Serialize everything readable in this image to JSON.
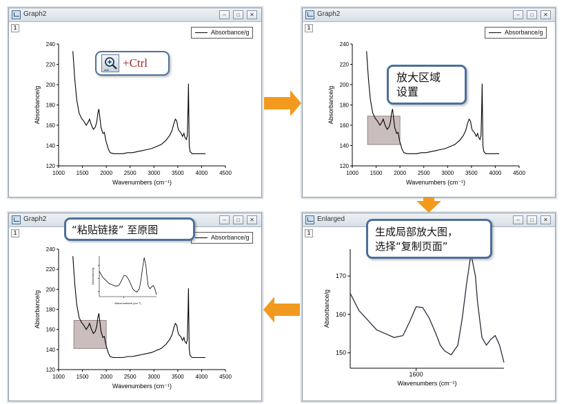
{
  "windows": [
    {
      "title": "Graph2",
      "layer_label": "1",
      "legend": "Absorbance/g"
    },
    {
      "title": "Graph2",
      "layer_label": "1",
      "legend": "Absorbance/g"
    },
    {
      "title": "Enlarged",
      "layer_label": "1"
    },
    {
      "title": "Graph2",
      "layer_label": "1",
      "legend": "Absorbance/g"
    }
  ],
  "window_controls": {
    "minimize": "–",
    "maximize": "□",
    "close": "✕"
  },
  "callouts": {
    "zoom_ctrl": "+Ctrl",
    "zoom_region": [
      "放大区域",
      "设置"
    ],
    "copy_page": [
      "生成局部放大图，",
      "选择“复制页面”"
    ],
    "paste_link": "“粘贴链接” 至原图"
  },
  "colors": {
    "accent_arrow": "#f29a1e",
    "callout_border": "#4c6f9c",
    "zoom_region_fill": "#b8a7a7"
  },
  "chart_data": [
    {
      "type": "line",
      "xlabel": "Wavenumbers (cm⁻¹)",
      "ylabel": "Absorbance/g",
      "xlim": [
        1000,
        4500
      ],
      "ylim": [
        120,
        240
      ],
      "xticks": [
        1000,
        1500,
        2000,
        2500,
        3000,
        3500,
        4000,
        4500
      ],
      "yticks": [
        120,
        140,
        160,
        180,
        200,
        220,
        240
      ],
      "legend": "Absorbance/g",
      "series": [
        {
          "name": "Absorbance/g",
          "x": [
            1300,
            1340,
            1380,
            1430,
            1480,
            1530,
            1580,
            1620,
            1650,
            1690,
            1730,
            1770,
            1800,
            1825,
            1845,
            1865,
            1890,
            1930,
            1960,
            1990,
            2040,
            2080,
            2150,
            2250,
            2350,
            2450,
            2550,
            2650,
            2750,
            2850,
            2950,
            3050,
            3150,
            3250,
            3330,
            3380,
            3420,
            3450,
            3480,
            3500,
            3520,
            3560,
            3600,
            3630,
            3650,
            3680,
            3700,
            3715,
            3725,
            3730,
            3740,
            3760,
            3800,
            3900,
            4000,
            4080
          ],
          "y": [
            233,
            205,
            185,
            172,
            167,
            164,
            160,
            163,
            166,
            160,
            156,
            158,
            163,
            172,
            176,
            168,
            158,
            152,
            153,
            145,
            137,
            133,
            132,
            132,
            132,
            133,
            133,
            134,
            135,
            136,
            137,
            139,
            141,
            145,
            150,
            155,
            162,
            166,
            164,
            158,
            155,
            153,
            149,
            152,
            148,
            146,
            150,
            175,
            201,
            175,
            140,
            134,
            132,
            132,
            132,
            132
          ]
        }
      ]
    },
    {
      "type": "line",
      "ylabel": "Absorbance/g",
      "xlabel": "Wavenumbers (cm⁻¹)",
      "xlim": [
        1300,
        2000
      ],
      "ylim": [
        146,
        177
      ],
      "xticks": [
        1600
      ],
      "yticks": [
        150,
        160,
        170
      ],
      "series": [
        {
          "name": "Absorbance/g",
          "x": [
            1300,
            1340,
            1380,
            1420,
            1460,
            1500,
            1540,
            1570,
            1600,
            1630,
            1660,
            1690,
            1710,
            1730,
            1760,
            1790,
            1810,
            1830,
            1850,
            1870,
            1880,
            1900,
            1920,
            1940,
            1960,
            1980,
            2000
          ],
          "y": [
            165.5,
            161,
            158.5,
            156,
            155,
            154,
            154.5,
            158,
            162,
            161.8,
            159,
            155,
            152,
            150.5,
            149.5,
            152,
            159,
            168,
            175.8,
            170,
            163,
            154,
            152,
            153.5,
            154.5,
            152,
            147.5
          ]
        }
      ]
    }
  ]
}
